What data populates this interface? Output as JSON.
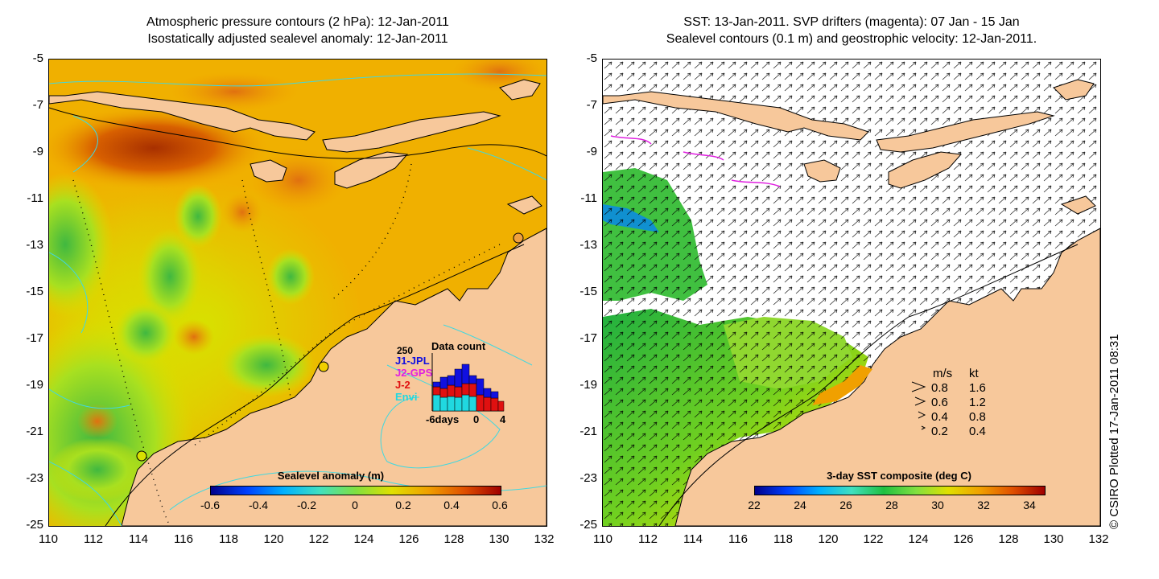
{
  "left_panel": {
    "title_line1": "Atmospheric pressure contours (2 hPa): 12-Jan-2011",
    "title_line2": "Isostatically adjusted sealevel anomaly: 12-Jan-2011",
    "colorbar_title": "Sealevel anomaly (m)",
    "colorbar_ticks": [
      "-0.6",
      "-0.4",
      "-0.2",
      "0",
      "0.2",
      "0.4",
      "0.6"
    ],
    "inset": {
      "title": "Data count",
      "max_label": "250",
      "series": [
        {
          "name": "J1-JPL",
          "color": "#1010e0"
        },
        {
          "name": "J2-GPS",
          "color": "#e020e0"
        },
        {
          "name": "J-2",
          "color": "#e01010"
        },
        {
          "name": "Envi",
          "color": "#20d8e0"
        }
      ],
      "x_labels": [
        "-6days",
        "0",
        "4"
      ]
    }
  },
  "right_panel": {
    "title_line1": "SST: 13-Jan-2011. SVP drifters (magenta): 07 Jan - 15 Jan",
    "title_line2": "Sealevel contours (0.1 m) and geostrophic velocity: 12-Jan-2011.",
    "colorbar_title": "3-day SST composite (deg C)",
    "colorbar_ticks": [
      "22",
      "24",
      "26",
      "28",
      "30",
      "32",
      "34"
    ],
    "velocity_legend": {
      "header_ms": "m/s",
      "header_kt": "kt",
      "rows": [
        {
          "ms": "0.8",
          "kt": "1.6"
        },
        {
          "ms": "0.6",
          "kt": "1.2"
        },
        {
          "ms": "0.4",
          "kt": "0.8"
        },
        {
          "ms": "0.2",
          "kt": "0.4"
        }
      ]
    }
  },
  "y_ticks": [
    "-5",
    "-7",
    "-9",
    "-11",
    "-13",
    "-15",
    "-17",
    "-19",
    "-21",
    "-23",
    "-25"
  ],
  "x_ticks": [
    "110",
    "112",
    "114",
    "116",
    "118",
    "120",
    "122",
    "124",
    "126",
    "128",
    "130",
    "132"
  ],
  "credit": "© CSIRO Plotted 17-Jan-2011 08:31",
  "colors": {
    "land": "#f7c89b",
    "ocean_base": "#f5b800",
    "contour": "#40d8e0"
  }
}
